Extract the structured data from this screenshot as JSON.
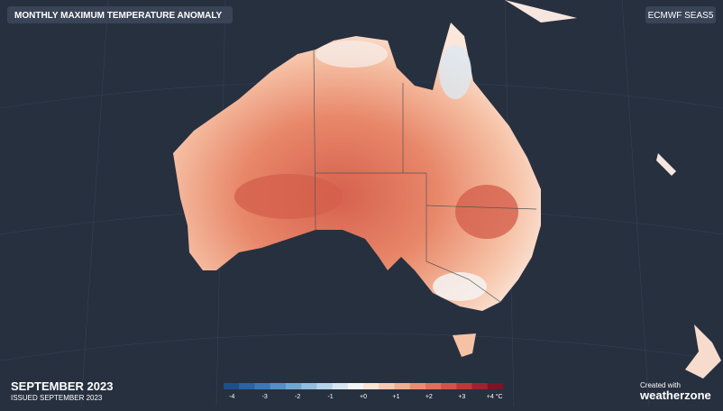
{
  "header": {
    "title": "MONTHLY MAXIMUM TEMPERATURE ANOMALY",
    "model": "ECMWF SEAS5"
  },
  "footer": {
    "period": "SEPTEMBER 2023",
    "issued": "ISSUED SEPTEMBER 2023",
    "credit": "Created with",
    "brand": "weatherzone"
  },
  "legend": {
    "ticks": [
      {
        "value": -4,
        "label": "-4"
      },
      {
        "value": -3,
        "label": "-3"
      },
      {
        "value": -2,
        "label": "-2"
      },
      {
        "value": -1,
        "label": "-1"
      },
      {
        "value": 0,
        "label": "+0"
      },
      {
        "value": 1,
        "label": "+1"
      },
      {
        "value": 2,
        "label": "+2"
      },
      {
        "value": 3,
        "label": "+3"
      },
      {
        "value": 4,
        "label": "+4 °C"
      }
    ],
    "colors": [
      "#1f4e8c",
      "#2a63a6",
      "#3a78b8",
      "#5290c6",
      "#6fa6d2",
      "#91bddf",
      "#b4d2ea",
      "#d5e5f2",
      "#f2f4f6",
      "#fbe3d6",
      "#f7c9b0",
      "#f2ad8e",
      "#e98f70",
      "#de7258",
      "#cf5646",
      "#b93a36",
      "#9c2330",
      "#7a1426"
    ]
  }
}
